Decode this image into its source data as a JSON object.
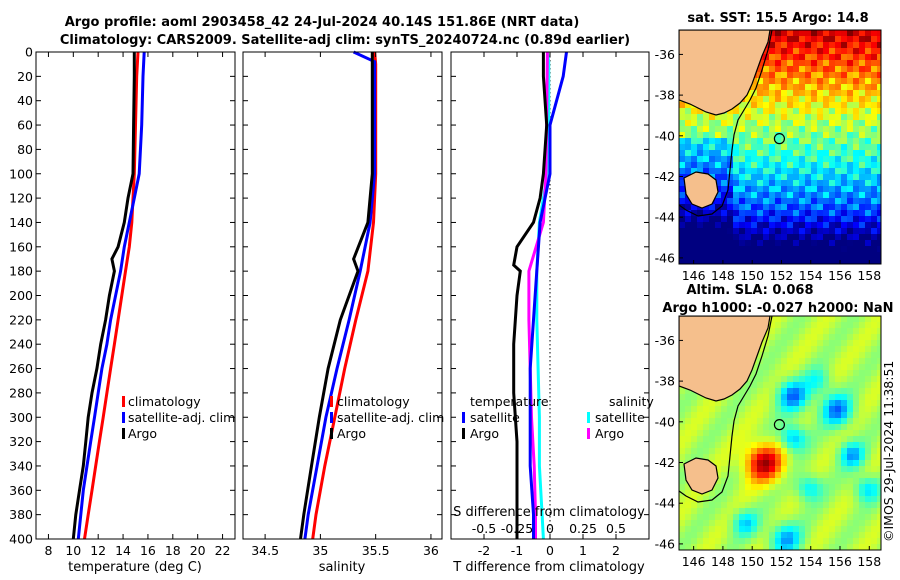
{
  "title_line1": "Argo profile: aoml 2903458_42 24-Jul-2024 40.14S 151.86E (NRT data)",
  "title_line2": "Climatology: CARS2009. Satellite-adj clim: synTS_20240724.nc (0.89d earlier)",
  "colors": {
    "climatology": "#ff0000",
    "satellite": "#0000ff",
    "argo": "#000000",
    "sat_salinity": "#00ffff",
    "argo_salinity": "#ff00ff",
    "land": "#f5bf8c"
  },
  "chart_data": [
    {
      "type": "line",
      "name": "temperature",
      "xlabel": "temperature (deg C)",
      "ylabel": "",
      "xlim": [
        7,
        23
      ],
      "ylim": [
        400,
        0
      ],
      "xticks": [
        "8",
        "10",
        "12",
        "14",
        "16",
        "18",
        "20",
        "22"
      ],
      "yticks": [
        "0",
        "20",
        "40",
        "60",
        "80",
        "100",
        "120",
        "140",
        "160",
        "180",
        "200",
        "220",
        "240",
        "260",
        "280",
        "300",
        "320",
        "340",
        "360",
        "380",
        "400"
      ],
      "legend": [
        "climatology",
        "satellite-adj. clim",
        "Argo"
      ],
      "series": [
        {
          "name": "climatology",
          "depth": [
            0,
            20,
            60,
            100,
            120,
            140,
            160,
            180,
            200,
            220,
            240,
            260,
            280,
            300,
            320,
            340,
            360,
            380,
            400
          ],
          "values": [
            15.2,
            15.1,
            15.0,
            14.9,
            14.8,
            14.7,
            14.5,
            14.2,
            13.9,
            13.6,
            13.3,
            13.0,
            12.7,
            12.4,
            12.1,
            11.8,
            11.5,
            11.2,
            10.9
          ]
        },
        {
          "name": "satellite-adj. clim",
          "depth": [
            0,
            20,
            60,
            100,
            120,
            140,
            160,
            180,
            200,
            220,
            240,
            260,
            280,
            300,
            320,
            340,
            360,
            380,
            400
          ],
          "values": [
            15.7,
            15.6,
            15.5,
            15.3,
            14.9,
            14.5,
            14.1,
            13.8,
            13.4,
            13.0,
            12.7,
            12.3,
            12.0,
            11.7,
            11.4,
            11.1,
            10.8,
            10.6,
            10.4
          ]
        },
        {
          "name": "Argo",
          "depth": [
            0,
            20,
            60,
            100,
            120,
            140,
            160,
            170,
            180,
            200,
            220,
            240,
            260,
            280,
            300,
            320,
            340,
            360,
            380,
            400
          ],
          "values": [
            14.9,
            14.9,
            14.85,
            14.8,
            14.4,
            14.1,
            13.6,
            13.1,
            13.3,
            12.9,
            12.6,
            12.2,
            11.9,
            11.5,
            11.2,
            11.0,
            10.8,
            10.5,
            10.2,
            10.0
          ]
        }
      ]
    },
    {
      "type": "line",
      "name": "salinity",
      "xlabel": "salinity",
      "ylabel": "",
      "xlim": [
        34.3,
        36.1
      ],
      "ylim": [
        400,
        0
      ],
      "xticks": [
        "34.5",
        "35",
        "35.5",
        "36"
      ],
      "legend": [
        "climatology",
        "satellite-adj. clim",
        "Argo"
      ],
      "series": [
        {
          "name": "climatology",
          "depth": [
            0,
            10,
            100,
            140,
            180,
            220,
            260,
            300,
            340,
            380,
            400
          ],
          "values": [
            35.49,
            35.5,
            35.5,
            35.48,
            35.43,
            35.32,
            35.22,
            35.13,
            35.04,
            34.96,
            34.93
          ]
        },
        {
          "name": "satellite-adj. clim",
          "depth": [
            0,
            8,
            100,
            140,
            180,
            220,
            260,
            300,
            340,
            380,
            400
          ],
          "values": [
            35.3,
            35.49,
            35.49,
            35.45,
            35.36,
            35.26,
            35.15,
            35.05,
            34.97,
            34.89,
            34.86
          ]
        },
        {
          "name": "Argo",
          "depth": [
            0,
            100,
            140,
            170,
            180,
            220,
            260,
            300,
            340,
            380,
            400
          ],
          "values": [
            35.47,
            35.47,
            35.43,
            35.3,
            35.34,
            35.18,
            35.07,
            34.99,
            34.92,
            34.85,
            34.82
          ]
        }
      ]
    },
    {
      "type": "line",
      "name": "difference",
      "xlabel": "T difference from climatology",
      "top_xlabel": "S difference from climatology",
      "xlim": [
        -3,
        3
      ],
      "ylim": [
        400,
        0
      ],
      "xticks": [
        "-2",
        "-1",
        "0",
        "1",
        "2"
      ],
      "top_xticks": [
        "-0.5",
        "-0.25",
        "0",
        "0.25",
        "0.5"
      ],
      "legend_titles": [
        "temperature",
        "salinity"
      ],
      "legend": [
        "satellite",
        "Argo",
        "satellite",
        "Argo"
      ],
      "series": [
        {
          "name": "T satellite",
          "depth": [
            0,
            20,
            60,
            100,
            140,
            180,
            220,
            260,
            300,
            340,
            380,
            400
          ],
          "values": [
            0.5,
            0.4,
            0.0,
            0.0,
            -0.3,
            -0.4,
            -0.5,
            -0.6,
            -0.6,
            -0.6,
            -0.5,
            -0.5
          ]
        },
        {
          "name": "T Argo",
          "depth": [
            0,
            20,
            60,
            100,
            120,
            140,
            160,
            175,
            180,
            200,
            240,
            280,
            320,
            360,
            380,
            400
          ],
          "values": [
            -0.2,
            -0.2,
            -0.1,
            -0.2,
            -0.3,
            -0.5,
            -1.0,
            -1.1,
            -0.9,
            -1.0,
            -1.1,
            -1.1,
            -1.0,
            -1.0,
            -1.0,
            -1.0
          ]
        },
        {
          "name": "S satellite",
          "depth": [
            0,
            8,
            60,
            100,
            140,
            180,
            220,
            260,
            300,
            340,
            380,
            400
          ],
          "values": [
            -0.02,
            -0.01,
            -0.01,
            -0.02,
            -0.08,
            -0.1,
            -0.1,
            -0.09,
            -0.08,
            -0.08,
            -0.06,
            -0.05
          ]
        },
        {
          "name": "S Argo",
          "depth": [
            0,
            100,
            140,
            180,
            220,
            260,
            300,
            340,
            380,
            400
          ],
          "values": [
            -0.02,
            -0.03,
            -0.05,
            -0.16,
            -0.16,
            -0.15,
            -0.14,
            -0.12,
            -0.11,
            -0.11
          ]
        }
      ]
    },
    {
      "type": "heatmap",
      "name": "sat-sst-map",
      "title": "sat. SST: 15.5 Argo: 14.8",
      "xlim": [
        145,
        158.8
      ],
      "ylim": [
        -46.3,
        -34.8
      ],
      "xticks": [
        "146",
        "148",
        "150",
        "152",
        "154",
        "156",
        "158"
      ],
      "yticks": [
        "-36",
        "-38",
        "-40",
        "-42",
        "-44",
        "-46"
      ],
      "marker": {
        "lon": 151.86,
        "lat": -40.14
      }
    },
    {
      "type": "heatmap",
      "name": "altimetry-map",
      "title": "Altim. SLA: 0.068",
      "subtitle": "Argo h1000: -0.027 h2000: NaN",
      "xlim": [
        145,
        158.8
      ],
      "ylim": [
        -46.3,
        -34.8
      ],
      "xticks": [
        "146",
        "148",
        "150",
        "152",
        "154",
        "156",
        "158"
      ],
      "yticks": [
        "-36",
        "-38",
        "-40",
        "-42",
        "-44",
        "-46"
      ],
      "marker": {
        "lon": 151.86,
        "lat": -40.14
      }
    }
  ],
  "side_stamp": "©IMOS 29-Jul-2024 11:38:51"
}
